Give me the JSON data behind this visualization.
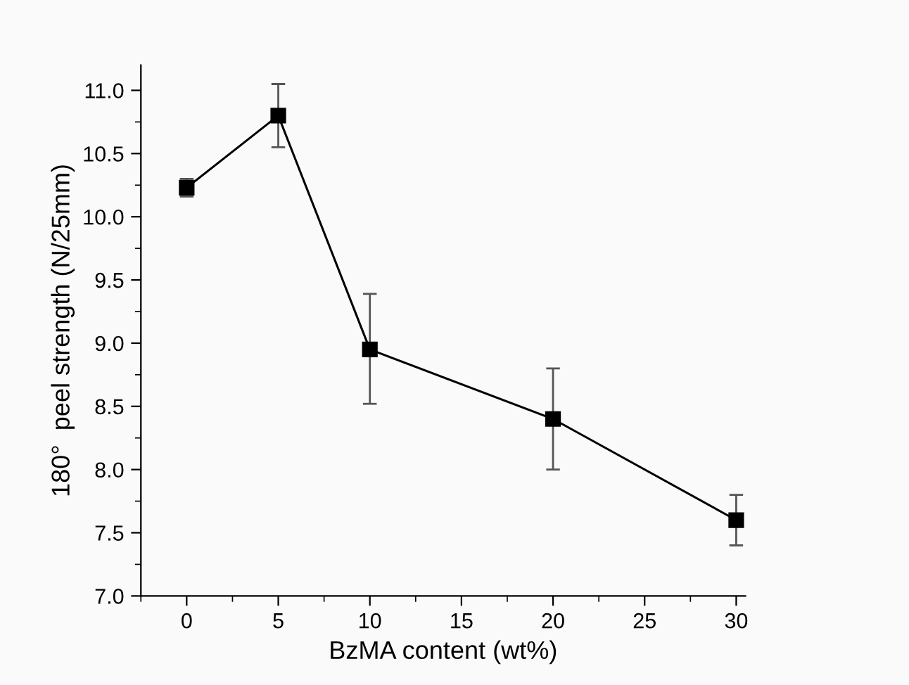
{
  "chart_data": {
    "type": "line",
    "xlabel": "BzMA content (wt%)",
    "ylabel": "180°  peel strength (N/25mm)",
    "x": [
      0,
      5,
      10,
      20,
      30
    ],
    "series": [
      {
        "color": "#000000",
        "values": [
          10.23,
          10.8,
          8.95,
          8.4,
          7.6
        ],
        "errors": [
          [
            10.16,
            10.3
          ],
          [
            10.55,
            11.05
          ],
          [
            8.52,
            9.39
          ],
          [
            8.0,
            8.8
          ],
          [
            7.4,
            7.8
          ]
        ]
      }
    ],
    "marker": "square",
    "line_style": "solid",
    "xlim": [
      -2.5,
      30.5
    ],
    "xticks": [
      0,
      5,
      10,
      15,
      20,
      25,
      30
    ],
    "ylim": [
      7.0,
      11.2
    ],
    "yticks": [
      {
        "value": 7.0,
        "label": "7.0"
      },
      {
        "value": 7.5,
        "label": "7.5"
      },
      {
        "value": 8.0,
        "label": "8.0"
      },
      {
        "value": 8.5,
        "label": "8.5"
      },
      {
        "value": 9.0,
        "label": "9.0"
      },
      {
        "value": 9.5,
        "label": "9.5"
      },
      {
        "value": 10.0,
        "label": "10.0"
      },
      {
        "value": 10.5,
        "label": "10.5"
      },
      {
        "value": 11.0,
        "label": "11.0"
      }
    ],
    "grid": false,
    "legend": false
  }
}
